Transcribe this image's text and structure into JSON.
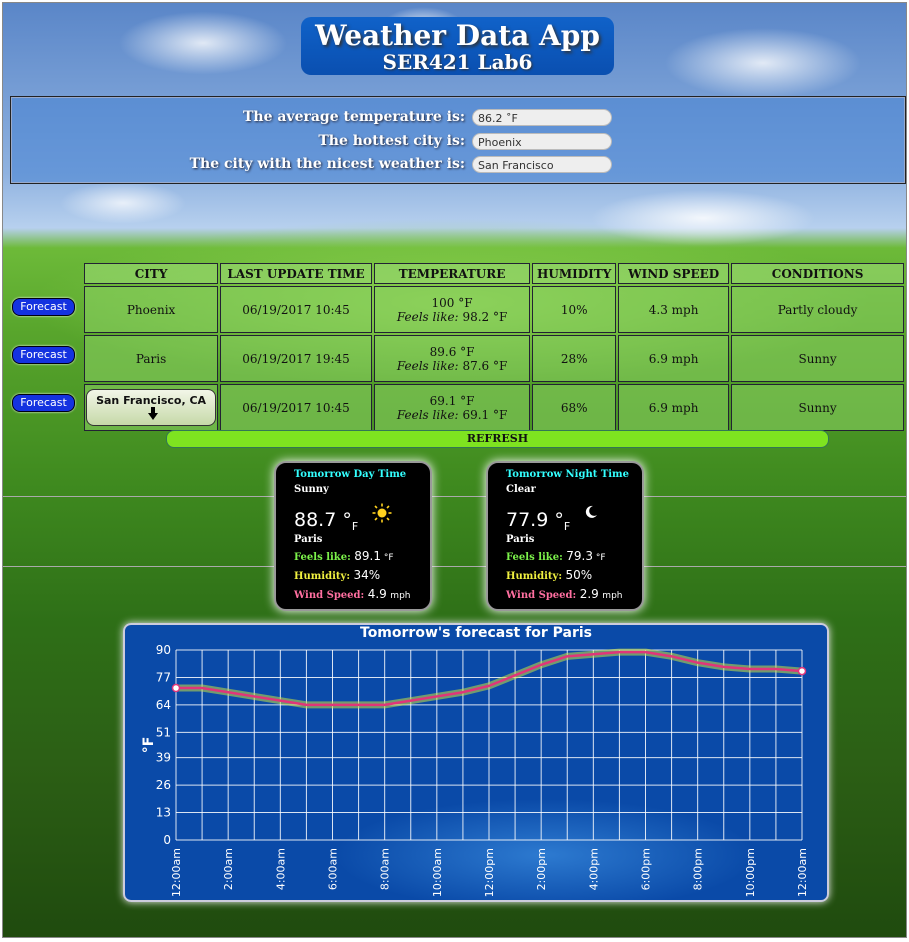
{
  "header": {
    "title": "Weather Data App",
    "subtitle": "SER421 Lab6"
  },
  "summary": {
    "avg_label": "The average temperature is:",
    "avg_value": "86.2 ˚F",
    "hot_label": "The hottest city is:",
    "hot_value": "Phoenix",
    "nice_label": "The city with the nicest weather is:",
    "nice_value": "San Francisco"
  },
  "table": {
    "headers": [
      "CITY",
      "LAST UPDATE TIME",
      "TEMPERATURE",
      "HUMIDITY",
      "WIND SPEED",
      "CONDITIONS"
    ],
    "forecast_label": "Forecast",
    "rows": [
      {
        "city": "Phoenix",
        "time": "06/19/2017  10:45",
        "temp": "100 °F",
        "feels_label": "Feels like:",
        "feels": "98.2 °F",
        "humidity": "10%",
        "wind": "4.3 mph",
        "conditions": "Partly cloudy"
      },
      {
        "city": "Paris",
        "time": "06/19/2017  19:45",
        "temp": "89.6 °F",
        "feels_label": "Feels like:",
        "feels": "87.6 °F",
        "humidity": "28%",
        "wind": "6.9 mph",
        "conditions": "Sunny"
      },
      {
        "city": "San Francisco, CA",
        "time": "06/19/2017  10:45",
        "temp": "69.1 °F",
        "feels_label": "Feels like:",
        "feels": "69.1 °F",
        "humidity": "68%",
        "wind": "6.9 mph",
        "conditions": "Sunny"
      }
    ],
    "refresh_label": "REFRESH"
  },
  "cards": {
    "day": {
      "title": "Tomorrow Day Time",
      "condition": "Sunny",
      "temp": "88.7",
      "deg": "°",
      "unit": "F",
      "city": "Paris",
      "feels_label": "Feels like:",
      "feels": "89.1",
      "humidity_label": "Humidity:",
      "humidity": "34%",
      "wind_label": "Wind Speed:",
      "wind": "4.9",
      "wind_unit": "mph",
      "icon": "sun-icon"
    },
    "night": {
      "title": "Tomorrow Night Time",
      "condition": "Clear",
      "temp": "77.9",
      "deg": "°",
      "unit": "F",
      "city": "Paris",
      "feels_label": "Feels like:",
      "feels": "79.3",
      "humidity_label": "Humidity:",
      "humidity": "50%",
      "wind_label": "Wind Speed:",
      "wind": "2.9",
      "wind_unit": "mph",
      "icon": "moon-icon"
    }
  },
  "colors": {
    "line": "#e0357a",
    "glow": "#c8e040",
    "feels": "#7cf24a",
    "humidity": "#f0f040",
    "wind": "#ff6fa0",
    "card_title": "#33ffff"
  },
  "chart_data": {
    "type": "line",
    "title": "Tomorrow's forecast for Paris",
    "ylabel": "°F",
    "xlabel": "",
    "ylim": [
      0,
      90
    ],
    "yticks": [
      0,
      13,
      26,
      39,
      51,
      64,
      77,
      90
    ],
    "xticks": [
      "12:00am",
      "2:00am",
      "4:00am",
      "6:00am",
      "8:00am",
      "10:00am",
      "12:00pm",
      "2:00pm",
      "4:00pm",
      "6:00pm",
      "8:00pm",
      "10:00pm",
      "12:00am"
    ],
    "x": [
      0,
      1,
      2,
      3,
      4,
      5,
      6,
      7,
      8,
      9,
      10,
      11,
      12,
      13,
      14,
      15,
      16,
      17,
      18,
      19,
      20,
      21,
      22,
      23,
      24
    ],
    "values": [
      72,
      72,
      70,
      68,
      66,
      64,
      64,
      64,
      64,
      66,
      68,
      70,
      73,
      78,
      83,
      87,
      88,
      89,
      89,
      87,
      84,
      82,
      81,
      81,
      80
    ],
    "grid": true,
    "legend": "none"
  }
}
